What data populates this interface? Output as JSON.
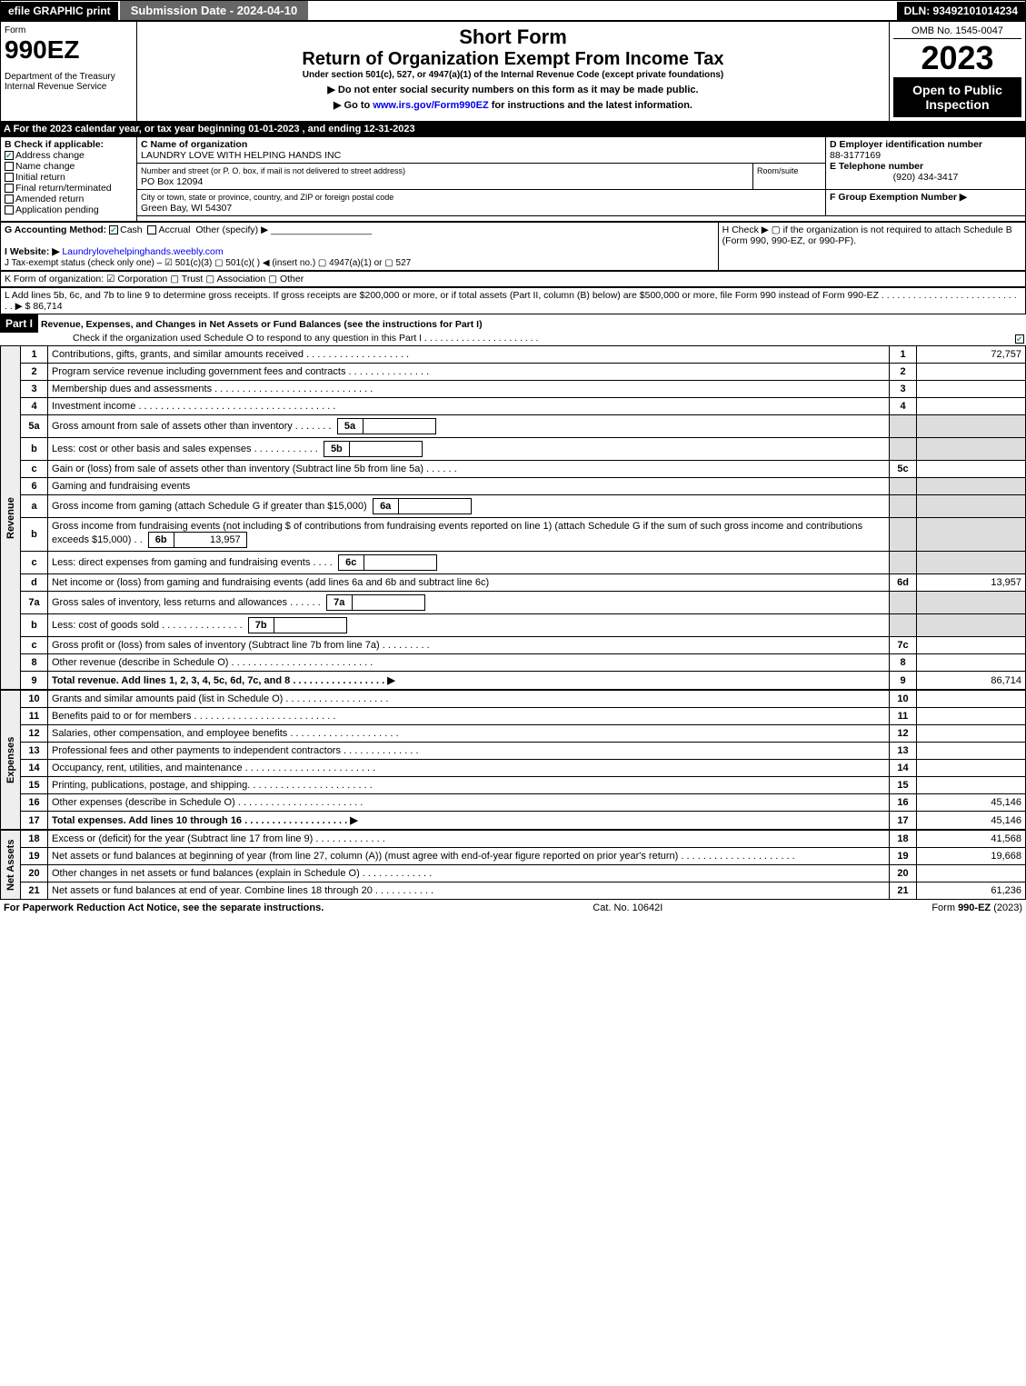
{
  "topbar": {
    "efile": "efile GRAPHIC print",
    "submission": "Submission Date - 2024-04-10",
    "dln": "DLN: 93492101014234"
  },
  "header": {
    "form_word": "Form",
    "form_number": "990EZ",
    "dept": "Department of the Treasury",
    "irs": "Internal Revenue Service",
    "short_form": "Short Form",
    "title": "Return of Organization Exempt From Income Tax",
    "subtitle": "Under section 501(c), 527, or 4947(a)(1) of the Internal Revenue Code (except private foundations)",
    "line1": "▶ Do not enter social security numbers on this form as it may be made public.",
    "line2": "▶ Go to www.irs.gov/Form990EZ for instructions and the latest information.",
    "omb": "OMB No. 1545-0047",
    "year": "2023",
    "open": "Open to Public Inspection"
  },
  "rowA": "A  For the 2023 calendar year, or tax year beginning 01-01-2023 , and ending 12-31-2023",
  "boxB": {
    "title": "B  Check if applicable:",
    "address_change": "Address change",
    "name_change": "Name change",
    "initial_return": "Initial return",
    "final_return": "Final return/terminated",
    "amended": "Amended return",
    "pending": "Application pending"
  },
  "boxC": {
    "label": "C Name of organization",
    "name": "LAUNDRY LOVE WITH HELPING HANDS INC",
    "street_label": "Number and street (or P. O. box, if mail is not delivered to street address)",
    "street": "PO Box 12094",
    "room_label": "Room/suite",
    "city_label": "City or town, state or province, country, and ZIP or foreign postal code",
    "city": "Green Bay, WI  54307"
  },
  "boxD": {
    "label": "D Employer identification number",
    "value": "88-3177169"
  },
  "boxE": {
    "label": "E Telephone number",
    "value": "(920) 434-3417"
  },
  "boxF": {
    "label": "F Group Exemption Number  ▶"
  },
  "rowG": {
    "label": "G Accounting Method:",
    "cash": "Cash",
    "accrual": "Accrual",
    "other": "Other (specify) ▶"
  },
  "rowH": "H   Check ▶  ▢  if the organization is not required to attach Schedule B (Form 990, 990-EZ, or 990-PF).",
  "rowI": {
    "label": "I Website: ▶",
    "value": "Laundrylovehelpinghands.weebly.com"
  },
  "rowJ": "J Tax-exempt status (check only one) – ☑ 501(c)(3)  ▢ 501(c)(  ) ◀ (insert no.)  ▢ 4947(a)(1) or  ▢ 527",
  "rowK": "K Form of organization:  ☑ Corporation   ▢ Trust   ▢ Association   ▢ Other",
  "rowL": "L Add lines 5b, 6c, and 7b to line 9 to determine gross receipts. If gross receipts are $200,000 or more, or if total assets (Part II, column (B) below) are $500,000 or more, file Form 990 instead of Form 990-EZ  .  .  .  .  .  .  .  .  .  .  .  .  .  .  .  .  .  .  .  .  .  .  .  .  .  .  .  .  ▶ $ 86,714",
  "part1": {
    "label": "Part I",
    "title": "Revenue, Expenses, and Changes in Net Assets or Fund Balances (see the instructions for Part I)",
    "check": "Check if the organization used Schedule O to respond to any question in this Part I  .  .  .  .  .  .  .  .  .  .  .  .  .  .  .  .  .  .  .  .  .  .",
    "checked": true
  },
  "sections": {
    "revenue": "Revenue",
    "expenses": "Expenses",
    "net": "Net Assets"
  },
  "lines": [
    {
      "n": "1",
      "desc": "Contributions, gifts, grants, and similar amounts received  .  .  .  .  .  .  .  .  .  .  .  .  .  .  .  .  .  .  .",
      "r": "1",
      "amt": "72,757"
    },
    {
      "n": "2",
      "desc": "Program service revenue including government fees and contracts  .  .  .  .  .  .  .  .  .  .  .  .  .  .  .",
      "r": "2",
      "amt": ""
    },
    {
      "n": "3",
      "desc": "Membership dues and assessments  .  .  .  .  .  .  .  .  .  .  .  .  .  .  .  .  .  .  .  .  .  .  .  .  .  .  .  .  .",
      "r": "3",
      "amt": ""
    },
    {
      "n": "4",
      "desc": "Investment income  .  .  .  .  .  .  .  .  .  .  .  .  .  .  .  .  .  .  .  .  .  .  .  .  .  .  .  .  .  .  .  .  .  .  .  .",
      "r": "4",
      "amt": ""
    },
    {
      "n": "5a",
      "desc": "Gross amount from sale of assets other than inventory  .  .  .  .  .  .  .",
      "sub": "5a",
      "subamt": "",
      "gray": true
    },
    {
      "n": "b",
      "desc": "Less: cost or other basis and sales expenses  .  .  .  .  .  .  .  .  .  .  .  .",
      "sub": "5b",
      "subamt": "",
      "gray": true
    },
    {
      "n": "c",
      "desc": "Gain or (loss) from sale of assets other than inventory (Subtract line 5b from line 5a)  .  .  .  .  .  .",
      "r": "5c",
      "amt": ""
    },
    {
      "n": "6",
      "desc": "Gaming and fundraising events",
      "gray": true,
      "noright": true
    },
    {
      "n": "a",
      "desc": "Gross income from gaming (attach Schedule G if greater than $15,000)",
      "sub": "6a",
      "subamt": "",
      "gray": true
    },
    {
      "n": "b",
      "desc": "Gross income from fundraising events (not including $                    of contributions from fundraising events reported on line 1) (attach Schedule G if the sum of such gross income and contributions exceeds $15,000)      .   .",
      "sub": "6b",
      "subamt": "13,957",
      "gray": true
    },
    {
      "n": "c",
      "desc": "Less: direct expenses from gaming and fundraising events    .  .  .  .",
      "sub": "6c",
      "subamt": "",
      "gray": true
    },
    {
      "n": "d",
      "desc": "Net income or (loss) from gaming and fundraising events (add lines 6a and 6b and subtract line 6c)",
      "r": "6d",
      "amt": "13,957"
    },
    {
      "n": "7a",
      "desc": "Gross sales of inventory, less returns and allowances  .  .  .  .  .  .",
      "sub": "7a",
      "subamt": "",
      "gray": true
    },
    {
      "n": "b",
      "desc": "Less: cost of goods sold           .  .  .  .  .  .  .  .  .  .  .  .  .  .  .",
      "sub": "7b",
      "subamt": "",
      "gray": true
    },
    {
      "n": "c",
      "desc": "Gross profit or (loss) from sales of inventory (Subtract line 7b from line 7a)  .  .  .  .  .  .  .  .  .",
      "r": "7c",
      "amt": ""
    },
    {
      "n": "8",
      "desc": "Other revenue (describe in Schedule O)  .  .  .  .  .  .  .  .  .  .  .  .  .  .  .  .  .  .  .  .  .  .  .  .  .  .",
      "r": "8",
      "amt": ""
    },
    {
      "n": "9",
      "desc": "Total revenue. Add lines 1, 2, 3, 4, 5c, 6d, 7c, and 8   .  .  .  .  .  .  .  .  .  .  .  .  .  .  .  .  . ▶",
      "r": "9",
      "amt": "86,714",
      "bold": true
    }
  ],
  "expenses": [
    {
      "n": "10",
      "desc": "Grants and similar amounts paid (list in Schedule O)  .  .  .  .  .  .  .  .  .  .  .  .  .  .  .  .  .  .  .",
      "r": "10",
      "amt": ""
    },
    {
      "n": "11",
      "desc": "Benefits paid to or for members      .  .  .  .  .  .  .  .  .  .  .  .  .  .  .  .  .  .  .  .  .  .  .  .  .  .",
      "r": "11",
      "amt": ""
    },
    {
      "n": "12",
      "desc": "Salaries, other compensation, and employee benefits  .  .  .  .  .  .  .  .  .  .  .  .  .  .  .  .  .  .  .  .",
      "r": "12",
      "amt": ""
    },
    {
      "n": "13",
      "desc": "Professional fees and other payments to independent contractors  .  .  .  .  .  .  .  .  .  .  .  .  .  .",
      "r": "13",
      "amt": ""
    },
    {
      "n": "14",
      "desc": "Occupancy, rent, utilities, and maintenance .  .  .  .  .  .  .  .  .  .  .  .  .  .  .  .  .  .  .  .  .  .  .  .",
      "r": "14",
      "amt": ""
    },
    {
      "n": "15",
      "desc": "Printing, publications, postage, and shipping.  .  .  .  .  .  .  .  .  .  .  .  .  .  .  .  .  .  .  .  .  .  .",
      "r": "15",
      "amt": ""
    },
    {
      "n": "16",
      "desc": "Other expenses (describe in Schedule O)     .  .  .  .  .  .  .  .  .  .  .  .  .  .  .  .  .  .  .  .  .  .  .",
      "r": "16",
      "amt": "45,146"
    },
    {
      "n": "17",
      "desc": "Total expenses. Add lines 10 through 16      .  .  .  .  .  .  .  .  .  .  .  .  .  .  .  .  .  .  . ▶",
      "r": "17",
      "amt": "45,146",
      "bold": true
    }
  ],
  "net": [
    {
      "n": "18",
      "desc": "Excess or (deficit) for the year (Subtract line 17 from line 9)        .  .  .  .  .  .  .  .  .  .  .  .  .",
      "r": "18",
      "amt": "41,568"
    },
    {
      "n": "19",
      "desc": "Net assets or fund balances at beginning of year (from line 27, column (A)) (must agree with end-of-year figure reported on prior year's return) .  .  .  .  .  .  .  .  .  .  .  .  .  .  .  .  .  .  .  .  .",
      "r": "19",
      "amt": "19,668"
    },
    {
      "n": "20",
      "desc": "Other changes in net assets or fund balances (explain in Schedule O)  .  .  .  .  .  .  .  .  .  .  .  .  .",
      "r": "20",
      "amt": ""
    },
    {
      "n": "21",
      "desc": "Net assets or fund balances at end of year. Combine lines 18 through 20  .  .  .  .  .  .  .  .  .  .  .",
      "r": "21",
      "amt": "61,236"
    }
  ],
  "footer": {
    "left": "For Paperwork Reduction Act Notice, see the separate instructions.",
    "mid": "Cat. No. 10642I",
    "right": "Form 990-EZ (2023)"
  }
}
